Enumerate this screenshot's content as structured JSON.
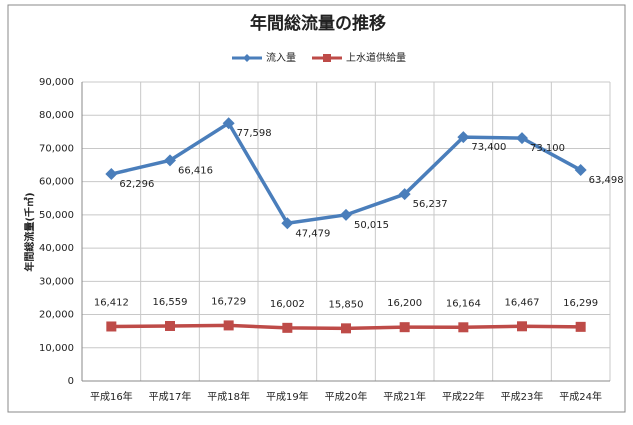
{
  "chart_data": {
    "type": "line",
    "title": "年間総流量の推移",
    "y_label": "年間総流量(千㎥)",
    "categories": [
      "平成16年",
      "平成17年",
      "平成18年",
      "平成19年",
      "平成20年",
      "平成21年",
      "平成22年",
      "平成23年",
      "平成24年"
    ],
    "series": [
      {
        "name": "流入量",
        "color": "#4a7ebb",
        "values": [
          62296,
          66416,
          77598,
          47479,
          50015,
          56237,
          73400,
          73100,
          63498
        ],
        "value_labels": [
          "62,296",
          "66,416",
          "77,598",
          "47,479",
          "50,015",
          "56,237",
          "73,400",
          "73,100",
          "63,498"
        ]
      },
      {
        "name": "上水道供給量",
        "color": "#be4b48",
        "values": [
          16412,
          16559,
          16729,
          16002,
          15850,
          16200,
          16164,
          16467,
          16299
        ],
        "value_labels": [
          "16,412",
          "16,559",
          "16,729",
          "16,002",
          "15,850",
          "16,200",
          "16,164",
          "16,467",
          "16,299"
        ]
      }
    ],
    "ylim": [
      0,
      90000
    ],
    "yticks": [
      0,
      {
        "value": 10000,
        "label": "10,000"
      },
      {
        "value": 20000,
        "label": "20,000"
      },
      {
        "value": 30000,
        "label": "30,000"
      },
      {
        "value": 40000,
        "label": "40,000"
      },
      {
        "value": 50000,
        "label": "50,000"
      },
      {
        "value": 60000,
        "label": "60,000"
      },
      {
        "value": 70000,
        "label": "70,000"
      },
      {
        "value": 80000,
        "label": "80,000"
      },
      {
        "value": 90000,
        "label": "90,000"
      }
    ],
    "grid": true,
    "legend": "top"
  }
}
